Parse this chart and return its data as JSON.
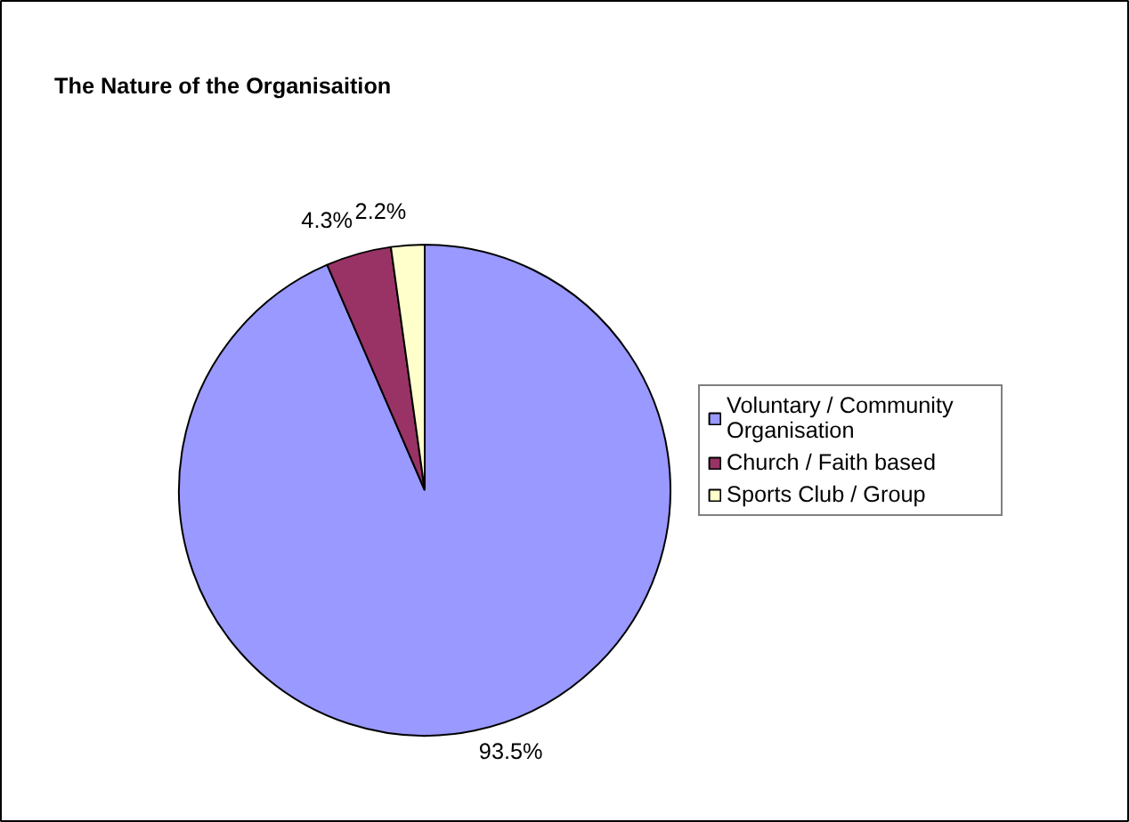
{
  "chart_data": {
    "type": "pie",
    "title": "The Nature of the Organisaition",
    "categories": [
      "Voluntary / Community Organisation",
      "Church / Faith based",
      "Sports Club / Group"
    ],
    "values": [
      93.5,
      4.3,
      2.2
    ],
    "colors": [
      "#9999ff",
      "#993366",
      "#ffffcc"
    ],
    "value_labels": [
      "93.5%",
      "4.3%",
      "2.2%"
    ],
    "legend": "right"
  }
}
